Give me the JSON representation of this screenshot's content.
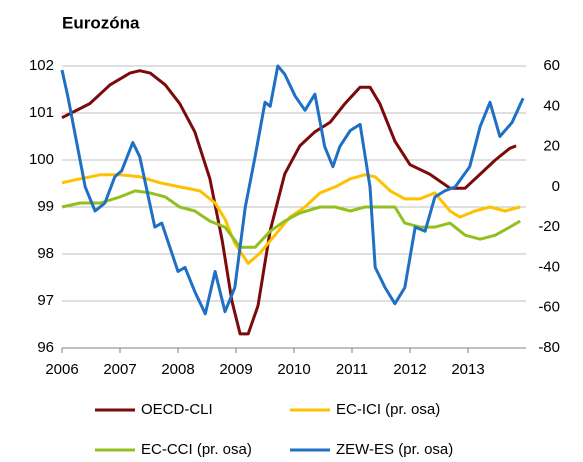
{
  "chart_data": {
    "type": "line",
    "title": "Eurozóna",
    "xlim": [
      2006,
      2014
    ],
    "xticks": [
      2006,
      2007,
      2008,
      2009,
      2010,
      2011,
      2012,
      2013
    ],
    "ylim": [
      96,
      102
    ],
    "yticks": [
      96,
      97,
      98,
      99,
      100,
      101,
      102
    ],
    "y2lim": [
      -80,
      60
    ],
    "y2ticks": [
      -80,
      -60,
      -40,
      -20,
      0,
      20,
      40,
      60
    ],
    "grid": true,
    "series": [
      {
        "name": "OECD-CLI",
        "color": "#7b0a0a",
        "x": [
          2006.0,
          2006.48,
          2006.83,
          2007.17,
          2007.34,
          2007.52,
          2007.78,
          2008.03,
          2008.29,
          2008.55,
          2008.76,
          2008.93,
          2009.07,
          2009.21,
          2009.38,
          2009.59,
          2009.84,
          2010.1,
          2010.36,
          2010.62,
          2010.88,
          2011.14,
          2011.31,
          2011.48,
          2011.74,
          2012.0,
          2012.34,
          2012.69,
          2012.95,
          2013.21,
          2013.47,
          2013.72,
          2013.83
        ],
        "values": [
          100.9,
          101.2,
          101.6,
          101.85,
          101.9,
          101.85,
          101.6,
          101.2,
          100.6,
          99.6,
          98.3,
          97.0,
          96.3,
          96.3,
          96.9,
          98.5,
          99.7,
          100.3,
          100.6,
          100.8,
          101.2,
          101.55,
          101.55,
          101.2,
          100.4,
          99.9,
          99.7,
          99.4,
          99.4,
          99.7,
          100.0,
          100.25,
          100.3
        ]
      },
      {
        "name": "EC-ICI (pr. osa)",
        "color": "#ffc000",
        "axis": "y2",
        "x": [
          2006.0,
          2006.31,
          2006.66,
          2007.0,
          2007.34,
          2007.69,
          2008.03,
          2008.38,
          2008.64,
          2008.81,
          2008.98,
          2009.21,
          2009.41,
          2009.67,
          2009.93,
          2010.19,
          2010.45,
          2010.71,
          2010.97,
          2011.22,
          2011.4,
          2011.66,
          2011.91,
          2012.17,
          2012.43,
          2012.69,
          2012.86,
          2013.12,
          2013.38,
          2013.64,
          2013.9
        ],
        "values": [
          2,
          4,
          6,
          6,
          5,
          2,
          0,
          -2,
          -8,
          -16,
          -28,
          -38,
          -33,
          -24,
          -15,
          -10,
          -3,
          0,
          4,
          6,
          5,
          -2,
          -6,
          -6,
          -3,
          -12,
          -15,
          -12,
          -10,
          -12,
          -10
        ]
      },
      {
        "name": "EC-CCI (pr. osa)",
        "color": "#92c01f",
        "axis": "y2",
        "x": [
          2006.0,
          2006.31,
          2006.66,
          2007.0,
          2007.26,
          2007.52,
          2007.78,
          2008.03,
          2008.29,
          2008.55,
          2008.81,
          2009.07,
          2009.33,
          2009.59,
          2009.84,
          2010.1,
          2010.45,
          2010.71,
          2010.97,
          2011.22,
          2011.48,
          2011.74,
          2011.91,
          2012.17,
          2012.43,
          2012.69,
          2012.95,
          2013.21,
          2013.47,
          2013.72,
          2013.9
        ],
        "values": [
          -10,
          -8,
          -8,
          -5,
          -2,
          -3,
          -5,
          -10,
          -12,
          -17,
          -20,
          -30,
          -30,
          -22,
          -17,
          -13,
          -10,
          -10,
          -12,
          -10,
          -10,
          -10,
          -18,
          -20,
          -20,
          -18,
          -24,
          -26,
          -24,
          -20,
          -17
        ]
      },
      {
        "name": "ZEW-ES (pr. osa)",
        "color": "#1f6fc5",
        "axis": "y2",
        "x": [
          2006.0,
          2006.1,
          2006.4,
          2006.57,
          2006.74,
          2006.91,
          2007.03,
          2007.22,
          2007.34,
          2007.6,
          2007.72,
          2007.86,
          2008.0,
          2008.12,
          2008.29,
          2008.47,
          2008.64,
          2008.81,
          2008.98,
          2009.16,
          2009.33,
          2009.5,
          2009.59,
          2009.72,
          2009.84,
          2010.02,
          2010.19,
          2010.36,
          2010.53,
          2010.67,
          2010.79,
          2010.97,
          2011.14,
          2011.31,
          2011.4,
          2011.57,
          2011.74,
          2011.91,
          2012.09,
          2012.26,
          2012.43,
          2012.6,
          2012.78,
          2013.03,
          2013.21,
          2013.38,
          2013.55,
          2013.76,
          2013.95
        ],
        "values": [
          58,
          45,
          0,
          -12,
          -8,
          5,
          8,
          22,
          15,
          -20,
          -18,
          -30,
          -42,
          -40,
          -52,
          -63,
          -42,
          -62,
          -50,
          -10,
          15,
          42,
          40,
          60,
          56,
          45,
          38,
          46,
          20,
          10,
          20,
          28,
          31,
          0,
          -40,
          -50,
          -58,
          -50,
          -20,
          -22,
          -5,
          -2,
          0,
          10,
          30,
          42,
          25,
          32,
          44
        ]
      }
    ]
  }
}
